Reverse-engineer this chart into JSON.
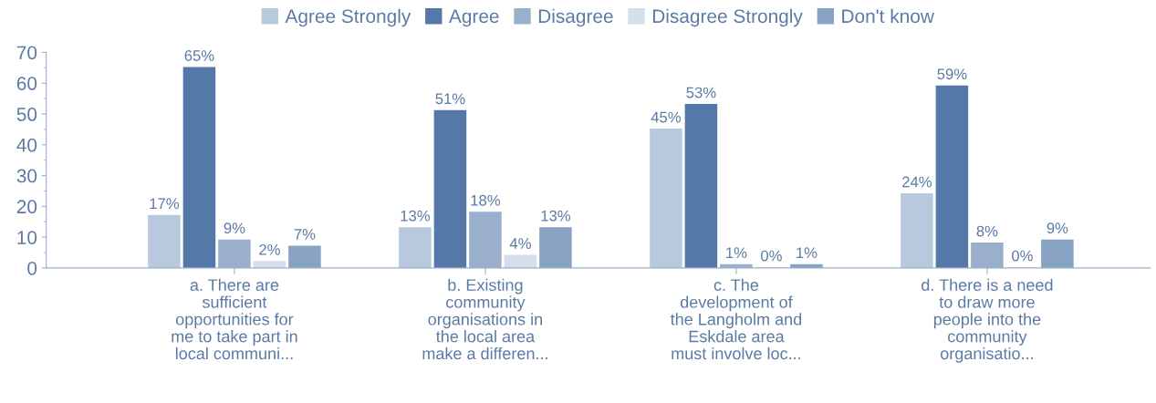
{
  "chart_data": {
    "type": "bar",
    "categories": [
      "a. There are\nsufficient\nopportunities for\nme to take part in\nlocal communi...",
      "b. Existing\ncommunity\norganisations in\nthe local area\nmake a differen...",
      "c. The\ndevelopment of\nthe Langholm and\nEskdale area\nmust involve loc...",
      "d. There is a need\nto draw more\npeople into the\ncommunity\norganisatio..."
    ],
    "series": [
      {
        "name": "Agree Strongly",
        "color": "#b9c9dd",
        "values": [
          17,
          13,
          45,
          24
        ],
        "value_labels": [
          "17%",
          "13%",
          "45%",
          "24%"
        ]
      },
      {
        "name": "Agree",
        "color": "#5479a8",
        "values": [
          65,
          51,
          53,
          59
        ],
        "value_labels": [
          "65%",
          "51%",
          "53%",
          "59%"
        ]
      },
      {
        "name": "Disagree",
        "color": "#9aafcb",
        "values": [
          9,
          18,
          1,
          8
        ],
        "value_labels": [
          "9%",
          "18%",
          "1%",
          "8%"
        ]
      },
      {
        "name": "Disagree Strongly",
        "color": "#d5dfeb",
        "values": [
          2,
          4,
          0,
          0
        ],
        "value_labels": [
          "2%",
          "4%",
          "0%",
          "0%"
        ]
      },
      {
        "name": "Don't know",
        "color": "#88a3c3",
        "values": [
          7,
          13,
          1,
          9
        ],
        "value_labels": [
          "7%",
          "13%",
          "1%",
          "9%"
        ]
      }
    ],
    "ylim": [
      0,
      70
    ],
    "yticks": [
      0,
      10,
      20,
      30,
      40,
      50,
      60,
      70
    ],
    "grid": false,
    "legend": "top"
  }
}
